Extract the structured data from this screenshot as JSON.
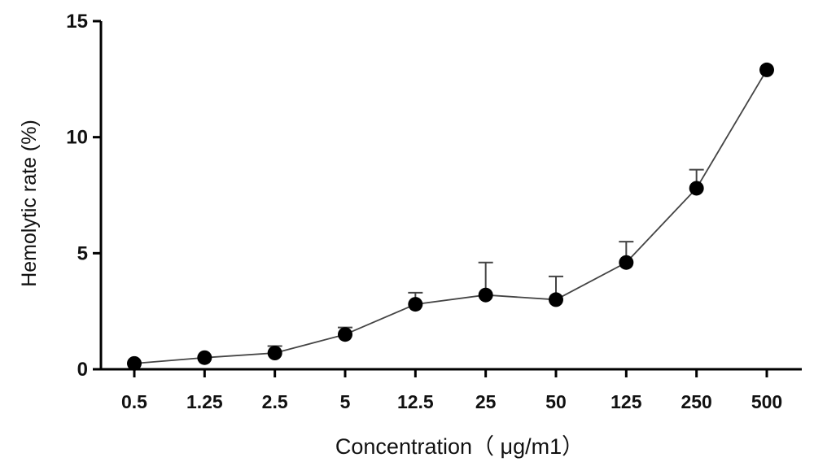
{
  "chart_data": {
    "type": "line",
    "title": "",
    "xlabel": "Concentration（ μg/m1）",
    "ylabel": "Hemolytic rate (%)",
    "categories": [
      "0.5",
      "1.25",
      "2.5",
      "5",
      "12.5",
      "25",
      "50",
      "125",
      "250",
      "500"
    ],
    "series": [
      {
        "values": [
          0.25,
          0.5,
          0.7,
          1.5,
          2.8,
          3.2,
          3.0,
          4.6,
          7.8,
          12.9
        ],
        "error_upper": [
          0.0,
          0.0,
          0.3,
          0.3,
          0.5,
          1.4,
          1.0,
          0.9,
          0.8,
          0.0
        ]
      }
    ],
    "ylim": [
      0,
      15
    ],
    "yticks": [
      0,
      5,
      10,
      15
    ],
    "grid": false,
    "legend": "none",
    "colors": {
      "line": "#444444",
      "marker": "#000000",
      "axis": "#000000"
    }
  }
}
